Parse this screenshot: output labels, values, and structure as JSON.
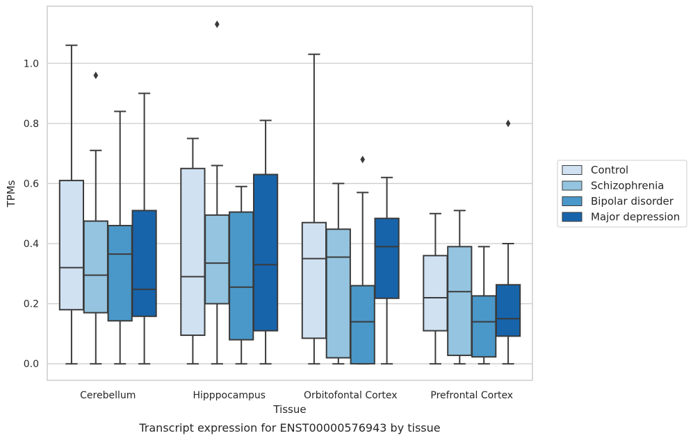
{
  "chart_data": {
    "type": "box",
    "caption": "Transcript expression for ENST00000576943 by tissue",
    "xlabel": "Tissue",
    "ylabel": "TPMs",
    "ylim": [
      -0.055,
      1.19
    ],
    "yticks": [
      "0.0",
      "0.2",
      "0.4",
      "0.6",
      "0.8",
      "1.0"
    ],
    "grid": "horizontal",
    "legend_position": "right",
    "categories": [
      "Cerebellum",
      "Hipppocampus",
      "Orbitofontal Cortex",
      "Prefrontal Cortex"
    ],
    "series": [
      {
        "name": "Control",
        "color": "#d0e1f2",
        "boxes": [
          {
            "min": 0.0,
            "q1": 0.18,
            "median": 0.32,
            "q3": 0.61,
            "max": 1.06,
            "outliers": []
          },
          {
            "min": 0.0,
            "q1": 0.095,
            "median": 0.29,
            "q3": 0.65,
            "max": 0.75,
            "outliers": []
          },
          {
            "min": 0.0,
            "q1": 0.085,
            "median": 0.35,
            "q3": 0.47,
            "max": 1.03,
            "outliers": []
          },
          {
            "min": 0.0,
            "q1": 0.11,
            "median": 0.22,
            "q3": 0.36,
            "max": 0.5,
            "outliers": []
          }
        ]
      },
      {
        "name": "Schizophrenia",
        "color": "#94c4df",
        "boxes": [
          {
            "min": 0.0,
            "q1": 0.17,
            "median": 0.295,
            "q3": 0.475,
            "max": 0.71,
            "outliers": [
              0.96
            ]
          },
          {
            "min": 0.0,
            "q1": 0.2,
            "median": 0.335,
            "q3": 0.495,
            "max": 0.66,
            "outliers": [
              1.13
            ]
          },
          {
            "min": 0.0,
            "q1": 0.02,
            "median": 0.355,
            "q3": 0.448,
            "max": 0.6,
            "outliers": []
          },
          {
            "min": 0.0,
            "q1": 0.028,
            "median": 0.24,
            "q3": 0.39,
            "max": 0.51,
            "outliers": []
          }
        ]
      },
      {
        "name": "Bipolar disorder",
        "color": "#4a98c9",
        "boxes": [
          {
            "min": 0.0,
            "q1": 0.143,
            "median": 0.365,
            "q3": 0.46,
            "max": 0.84,
            "outliers": []
          },
          {
            "min": 0.0,
            "q1": 0.08,
            "median": 0.255,
            "q3": 0.505,
            "max": 0.59,
            "outliers": []
          },
          {
            "min": 0.0,
            "q1": 0.0,
            "median": 0.14,
            "q3": 0.26,
            "max": 0.57,
            "outliers": [
              0.68
            ]
          },
          {
            "min": 0.0,
            "q1": 0.023,
            "median": 0.14,
            "q3": 0.226,
            "max": 0.39,
            "outliers": []
          }
        ]
      },
      {
        "name": "Major depression",
        "color": "#1764ab",
        "boxes": [
          {
            "min": 0.0,
            "q1": 0.158,
            "median": 0.248,
            "q3": 0.51,
            "max": 0.9,
            "outliers": []
          },
          {
            "min": 0.0,
            "q1": 0.11,
            "median": 0.33,
            "q3": 0.63,
            "max": 0.81,
            "outliers": []
          },
          {
            "min": 0.0,
            "q1": 0.218,
            "median": 0.39,
            "q3": 0.484,
            "max": 0.62,
            "outliers": []
          },
          {
            "min": 0.0,
            "q1": 0.092,
            "median": 0.15,
            "q3": 0.263,
            "max": 0.4,
            "outliers": [
              0.8
            ]
          }
        ]
      }
    ],
    "colors": {
      "box_edge": "#3a3a3a",
      "grid": "#cccccc",
      "axes_frame": "#cccccc",
      "text": "#262626"
    }
  }
}
